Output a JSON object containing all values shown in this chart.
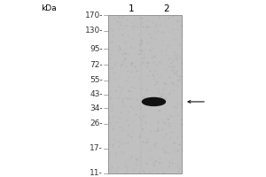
{
  "background_color": "#ffffff",
  "gel_bg_color": "#c0c0c0",
  "marker_values": [
    170,
    130,
    95,
    72,
    55,
    43,
    34,
    26,
    17,
    11
  ],
  "kda_label": "kDa",
  "lane_labels": [
    "1",
    "2"
  ],
  "band_kda": 38,
  "band_color": "#111111",
  "arrow_color": "#111111",
  "tick_color": "#333333",
  "border_color": "#888888",
  "label_fontsize": 6.5,
  "lane_fontsize": 7.5,
  "kda_fontsize": 6.5,
  "fig_width": 3.0,
  "fig_height": 2.0,
  "dpi": 100
}
